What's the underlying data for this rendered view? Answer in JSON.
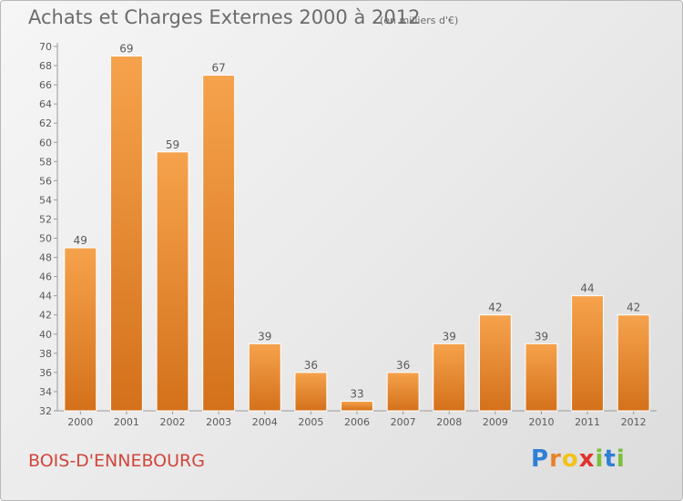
{
  "title": "Achats et Charges Externes 2000 à 2012",
  "subtitle": "(en milliers d'€)",
  "commune": "BOIS-D'ENNEBOURG",
  "logo": {
    "letters": [
      "P",
      "r",
      "o",
      "x",
      "i",
      "t",
      "i"
    ],
    "colors": [
      "#2e7fd6",
      "#e8832a",
      "#f2c318",
      "#e0322c",
      "#7bbf3a",
      "#2e7fd6",
      "#7bbf3a"
    ]
  },
  "colors": {
    "bar_light": "#f6a24c",
    "bar_dark": "#d4711b",
    "text": "#5a5a5a",
    "grid": "#c8c8c8"
  },
  "chart_data": {
    "type": "bar",
    "title": "Achats et Charges Externes 2000 à 2012",
    "subtitle": "(en milliers d'€)",
    "categories": [
      "2000",
      "2001",
      "2002",
      "2003",
      "2004",
      "2005",
      "2006",
      "2007",
      "2008",
      "2009",
      "2010",
      "2011",
      "2012"
    ],
    "values": [
      49,
      69,
      59,
      67,
      39,
      36,
      33,
      36,
      39,
      42,
      39,
      44,
      42
    ],
    "ylim": [
      32,
      70
    ],
    "yticks": [
      32,
      34,
      36,
      38,
      40,
      42,
      44,
      46,
      48,
      50,
      52,
      54,
      56,
      58,
      60,
      62,
      64,
      66,
      68,
      70
    ],
    "grid": false
  }
}
